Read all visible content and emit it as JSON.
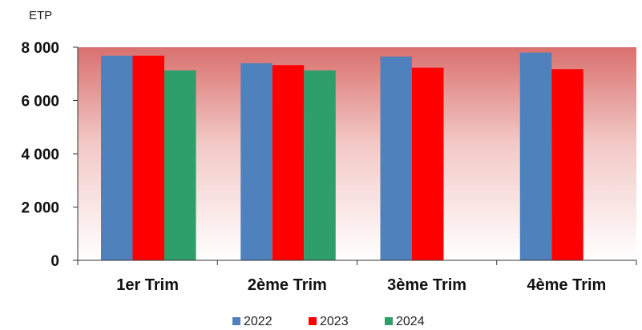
{
  "chart_data": {
    "type": "bar",
    "ylabel": "ETP",
    "categories": [
      "1er Trim",
      "2ème Trim",
      "3ème Trim",
      "4ème Trim"
    ],
    "series": [
      {
        "name": "2022",
        "color": "#4F81BD",
        "values": [
          7680,
          7400,
          7650,
          7800
        ]
      },
      {
        "name": "2023",
        "color": "#FF0000",
        "values": [
          7680,
          7330,
          7230,
          7180
        ]
      },
      {
        "name": "2024",
        "color": "#2E9E6B",
        "values": [
          7130,
          7130,
          null,
          null
        ]
      }
    ],
    "ylim": [
      0,
      8000
    ],
    "yticks": [
      0,
      2000,
      4000,
      6000,
      8000
    ],
    "ytick_labels": [
      "0",
      "2 000",
      "4 000",
      "6 000",
      "8 000"
    ],
    "plot_background": {
      "top_color": "#D9706E",
      "bottom_color": "#FFFFFF"
    },
    "grid": false,
    "legend_position": "bottom"
  }
}
